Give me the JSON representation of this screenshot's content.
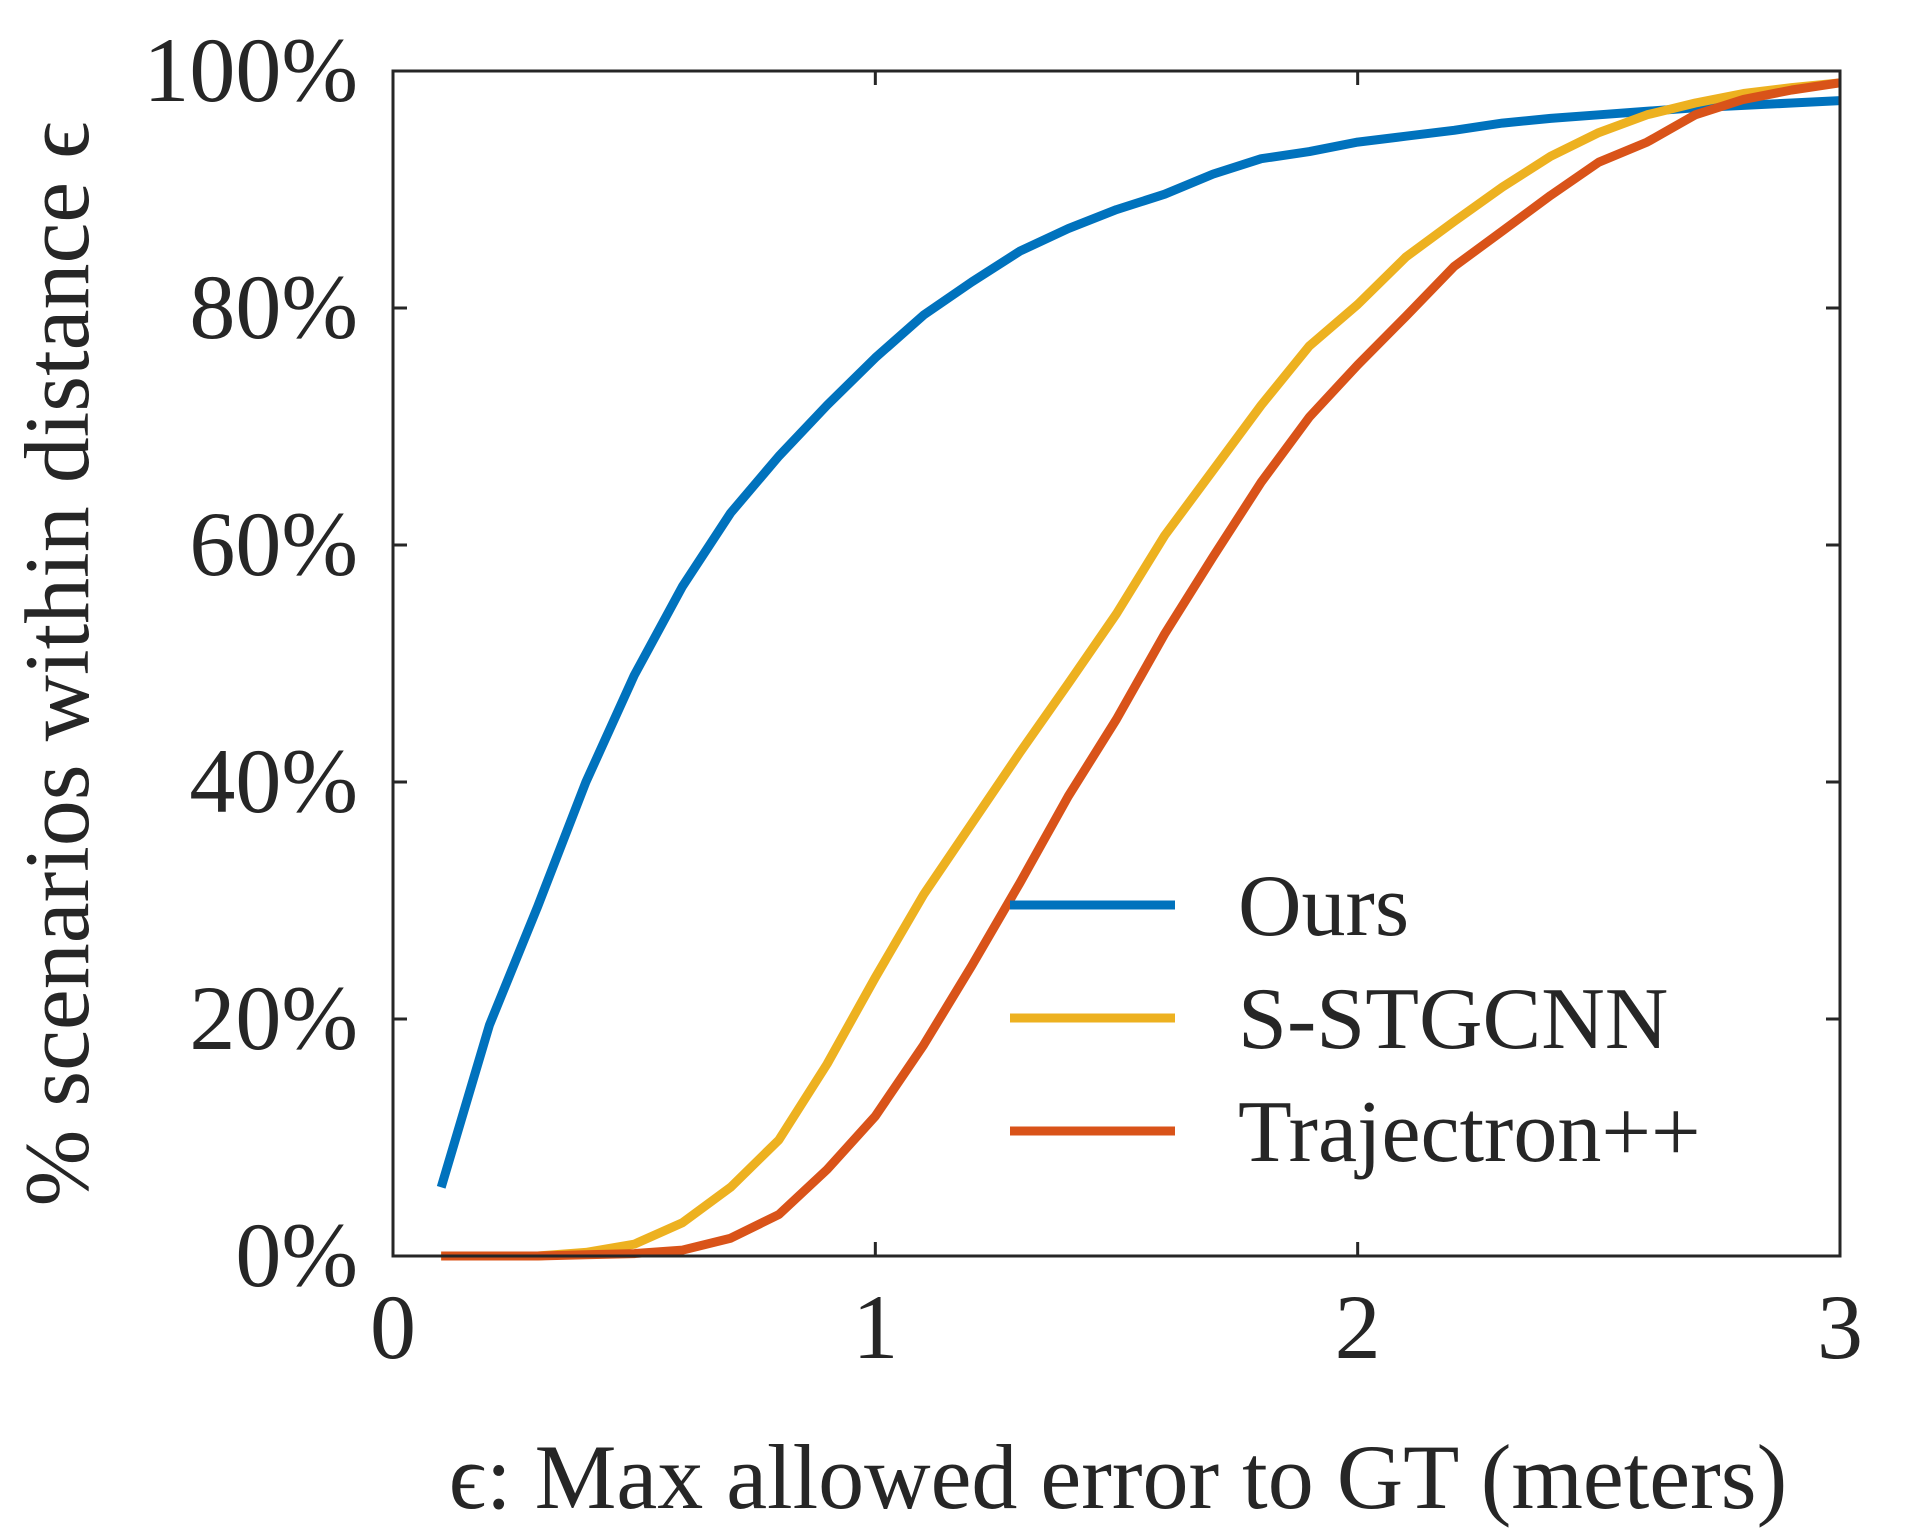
{
  "chart_data": {
    "type": "line",
    "xlabel": "ϵ: Max allowed error to GT (meters)",
    "ylabel": "% scenarios within distance ϵ",
    "xlim": [
      0,
      3
    ],
    "ylim": [
      0,
      100
    ],
    "xticks": [
      {
        "value": 0,
        "label": "0"
      },
      {
        "value": 1,
        "label": "1"
      },
      {
        "value": 2,
        "label": "2"
      },
      {
        "value": 3,
        "label": "3"
      }
    ],
    "yticks": [
      {
        "value": 0,
        "label": "0%"
      },
      {
        "value": 20,
        "label": "20%"
      },
      {
        "value": 40,
        "label": "40%"
      },
      {
        "value": 60,
        "label": "60%"
      },
      {
        "value": 80,
        "label": "80%"
      },
      {
        "value": 100,
        "label": "100%"
      }
    ],
    "grid": false,
    "legend_position": "lower-right",
    "x": [
      0.1,
      0.2,
      0.3,
      0.4,
      0.5,
      0.6,
      0.7,
      0.8,
      0.9,
      1.0,
      1.1,
      1.2,
      1.3,
      1.4,
      1.5,
      1.6,
      1.7,
      1.8,
      1.9,
      2.0,
      2.1,
      2.2,
      2.3,
      2.4,
      2.5,
      2.6,
      2.7,
      2.8,
      2.9,
      3.0
    ],
    "series": [
      {
        "name": "Ours",
        "color": "#0072BD",
        "values": [
          5.8,
          19.5,
          29.5,
          40.0,
          49.0,
          56.5,
          62.7,
          67.5,
          71.8,
          75.8,
          79.4,
          82.2,
          84.8,
          86.7,
          88.3,
          89.6,
          91.3,
          92.6,
          93.2,
          94.0,
          94.5,
          95.0,
          95.6,
          96.0,
          96.3,
          96.6,
          96.9,
          97.1,
          97.3,
          97.5
        ]
      },
      {
        "name": "S-STGCNN",
        "color": "#EDB120",
        "values": [
          0.0,
          0.0,
          0.0,
          0.3,
          1.0,
          2.8,
          5.8,
          9.8,
          16.2,
          23.5,
          30.5,
          36.5,
          42.5,
          48.3,
          54.2,
          60.8,
          66.3,
          71.8,
          76.8,
          80.3,
          84.3,
          87.3,
          90.2,
          92.8,
          94.8,
          96.3,
          97.3,
          98.1,
          98.6,
          99.0
        ]
      },
      {
        "name": "Trajectron++",
        "color": "#D95319",
        "values": [
          0.0,
          0.0,
          0.0,
          0.1,
          0.2,
          0.5,
          1.5,
          3.5,
          7.3,
          11.8,
          17.8,
          24.5,
          31.5,
          38.8,
          45.3,
          52.5,
          59.0,
          65.3,
          70.8,
          75.2,
          79.3,
          83.5,
          86.5,
          89.5,
          92.3,
          94.0,
          96.3,
          97.6,
          98.4,
          99.0
        ]
      }
    ]
  }
}
